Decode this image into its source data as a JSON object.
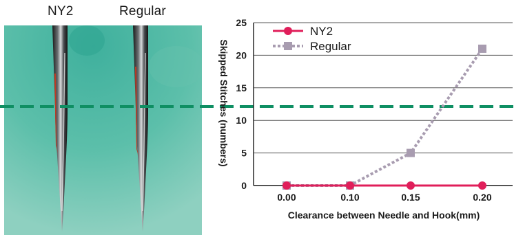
{
  "photo": {
    "label_left": "NY2",
    "label_right": "Regular",
    "background_color": "#4fb8a2"
  },
  "divider_color": "#0f8f63",
  "chart_data": {
    "type": "line",
    "xlabel": "Clearance between Needle and Hook(mm)",
    "ylabel": "Skipped Stitches (numbers)",
    "x": [
      "0.00",
      "0.10",
      "0.15",
      "0.20"
    ],
    "ylim": [
      0,
      25
    ],
    "yticks": [
      0,
      5,
      10,
      15,
      20,
      25
    ],
    "grid": true,
    "legend_position": "top-left",
    "series": [
      {
        "name": "NY2",
        "values": [
          0,
          0,
          0,
          0
        ],
        "color": "#e01e5a",
        "marker": "circle",
        "line": "solid"
      },
      {
        "name": "Regular",
        "values": [
          0,
          0,
          5,
          21
        ],
        "color": "#a89cb0",
        "marker": "square",
        "line": "dotted"
      }
    ]
  }
}
